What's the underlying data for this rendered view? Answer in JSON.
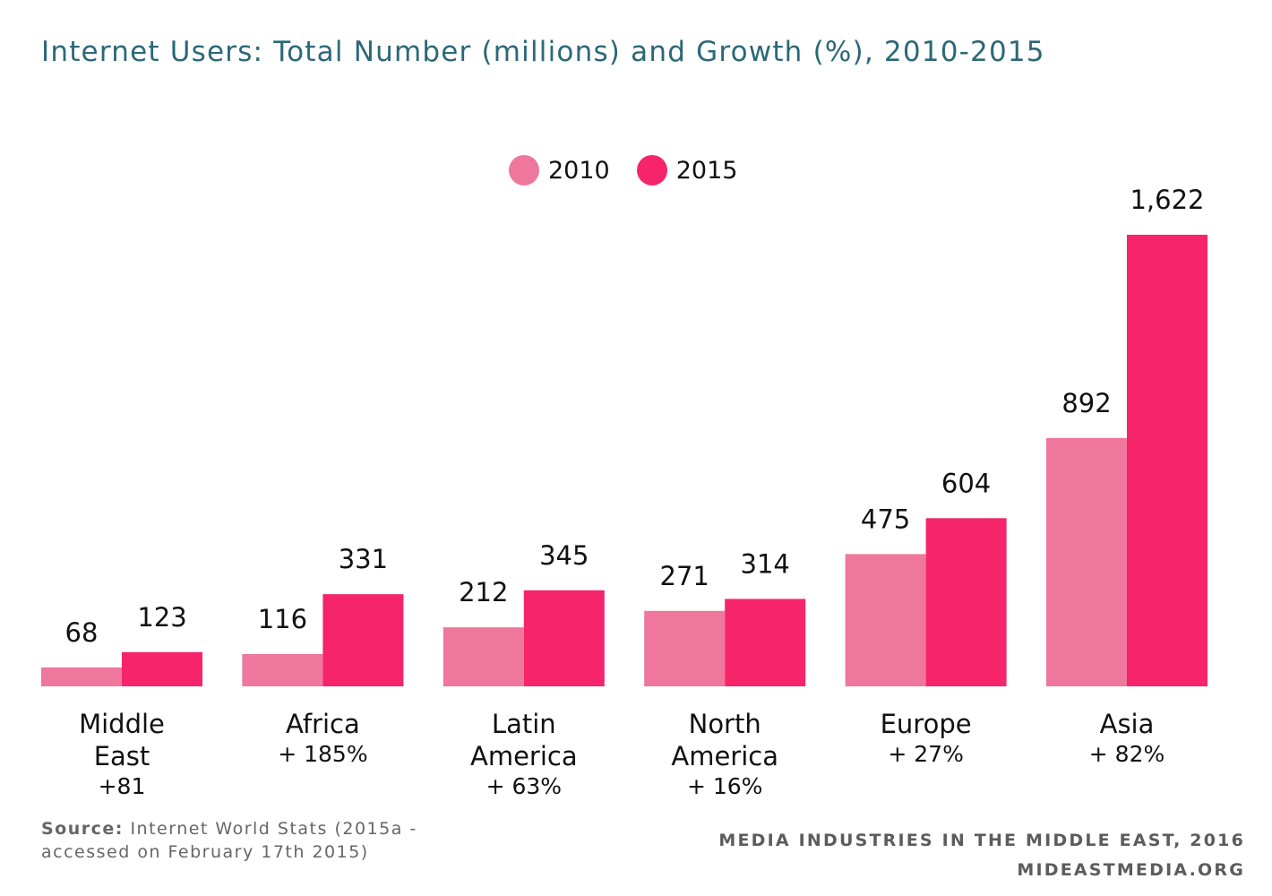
{
  "title": "Internet Users: Total Number (millions) and Growth (%), 2010-2015",
  "legend": [
    {
      "label": "2010",
      "color": "#ef769c"
    },
    {
      "label": "2015",
      "color": "#f5246b"
    }
  ],
  "chart_data": {
    "type": "bar",
    "title": "Internet Users: Total Number (millions) and Growth (%), 2010-2015",
    "xlabel": "",
    "ylabel": "",
    "grid": false,
    "legend_position": "top-center",
    "ylim": [
      0,
      1622
    ],
    "categories": [
      "Middle East",
      "Africa",
      "Latin America",
      "North America",
      "Europe",
      "Asia"
    ],
    "category_display": [
      "Middle\nEast",
      "Africa",
      "Latin\nAmerica",
      "North\nAmerica",
      "Europe",
      "Asia"
    ],
    "growth_labels": [
      "+81",
      "+ 185%",
      "+ 63%",
      "+ 16%",
      "+ 27%",
      "+ 82%"
    ],
    "series": [
      {
        "name": "2010",
        "color": "#ef769c",
        "values": [
          68,
          116,
          212,
          271,
          475,
          892
        ],
        "value_labels": [
          "68",
          "116",
          "212",
          "271",
          "475",
          "892"
        ]
      },
      {
        "name": "2015",
        "color": "#f5246b",
        "values": [
          123,
          331,
          345,
          314,
          604,
          1622
        ],
        "value_labels": [
          "123",
          "331",
          "345",
          "314",
          "604",
          "1,622"
        ]
      }
    ]
  },
  "source": {
    "prefix": "Source:",
    "text": "Internet World Stats (2015a - accessed on February 17th 2015)"
  },
  "credit": {
    "line1": "MEDIA INDUSTRIES IN THE MIDDLE EAST, 2016",
    "line2": "MIDEASTMEDIA.ORG"
  }
}
